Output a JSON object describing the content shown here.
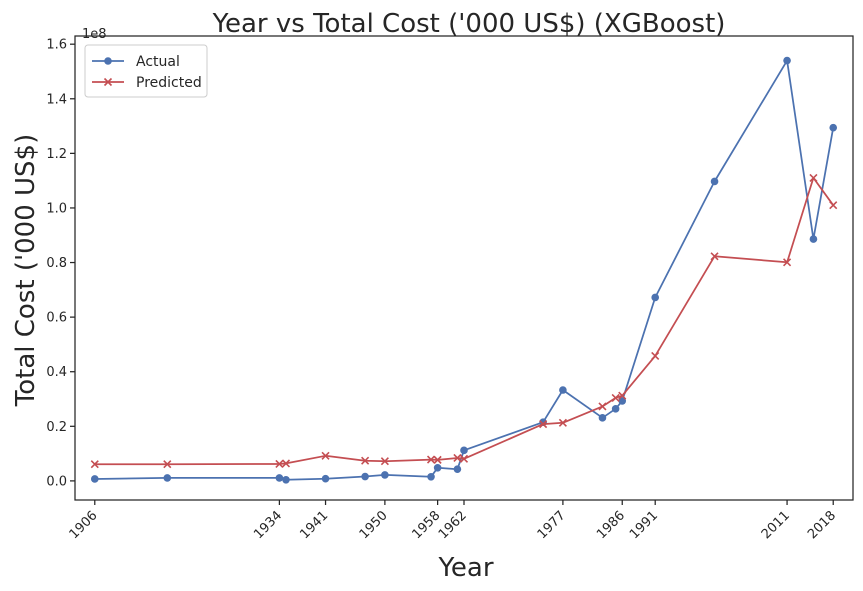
{
  "chart_data": {
    "type": "line",
    "title": "Year vs Total Cost ('000 US$) (XGBoost)",
    "xlabel": "Year",
    "ylabel": "Total Cost ('000 US$)",
    "y_offset_label": "1e8",
    "xlim": [
      1903,
      2021
    ],
    "ylim": [
      -7000000,
      163000000
    ],
    "x_ticks": [
      1906,
      1934,
      1941,
      1950,
      1958,
      1962,
      1977,
      1986,
      1991,
      2011,
      2018
    ],
    "y_ticks": [
      0,
      20000000,
      40000000,
      60000000,
      80000000,
      100000000,
      120000000,
      140000000,
      160000000
    ],
    "y_tick_labels": [
      "0.0",
      "0.2",
      "0.4",
      "0.6",
      "0.8",
      "1.0",
      "1.2",
      "1.4",
      "1.6"
    ],
    "legend_position": "top-left",
    "grid": false,
    "series": [
      {
        "name": "Actual",
        "color": "#4c72b0",
        "marker": "circle",
        "x": [
          1906,
          1917,
          1934,
          1935,
          1941,
          1947,
          1950,
          1957,
          1958,
          1961,
          1962,
          1974,
          1977,
          1983,
          1985,
          1986,
          1991,
          2000,
          2011,
          2015,
          2018
        ],
        "y": [
          700000,
          1100000,
          1100000,
          400000,
          800000,
          1600000,
          2200000,
          1500000,
          4800000,
          4300000,
          11200000,
          21500000,
          33300000,
          23100000,
          26400000,
          29300000,
          67200000,
          109700000,
          154000000,
          88600000,
          129400000
        ]
      },
      {
        "name": "Predicted",
        "color": "#c44e52",
        "marker": "x",
        "x": [
          1906,
          1917,
          1934,
          1935,
          1941,
          1947,
          1950,
          1957,
          1958,
          1961,
          1962,
          1974,
          1977,
          1983,
          1985,
          1986,
          1991,
          2000,
          2011,
          2015,
          2018
        ],
        "y": [
          6100000,
          6100000,
          6200000,
          6400000,
          9200000,
          7400000,
          7200000,
          7800000,
          7700000,
          8400000,
          8100000,
          20800000,
          21300000,
          27300000,
          30400000,
          31200000,
          45800000,
          82300000,
          80100000,
          111000000,
          101000000
        ]
      }
    ]
  }
}
